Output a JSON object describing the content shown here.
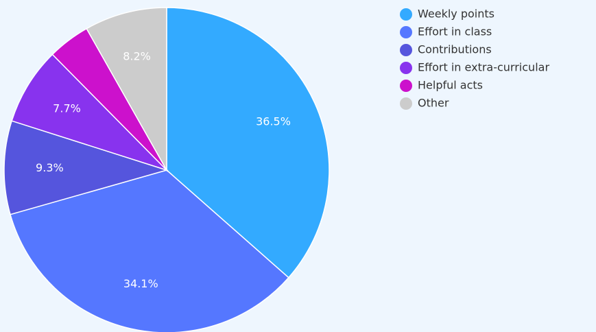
{
  "chart_data": {
    "type": "pie",
    "categories": [
      "Weekly points",
      "Effort in class",
      "Contributions",
      "Effort in extra-curricular",
      "Helpful acts",
      "Other"
    ],
    "values": [
      36.5,
      34.1,
      9.3,
      7.7,
      4.2,
      8.2
    ],
    "value_labels": [
      "36.5%",
      "34.1%",
      "9.3%",
      "7.7%",
      null,
      "8.2%"
    ],
    "colors": [
      "#33aaff",
      "#5577ff",
      "#5555dd",
      "#8833ee",
      "#cc11cc",
      "#cccccc"
    ],
    "legend": "right"
  }
}
